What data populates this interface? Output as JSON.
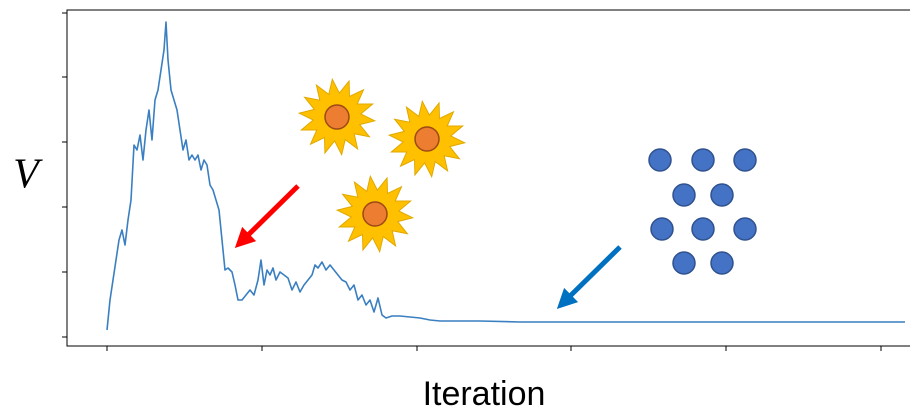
{
  "chart_data": {
    "type": "line",
    "xlabel": "Iteration",
    "ylabel": "V",
    "color": "#3a7fc1",
    "x": [
      0,
      3,
      6,
      9,
      12,
      15,
      18,
      21,
      24,
      27,
      30,
      33,
      36,
      39,
      42,
      45,
      48,
      51,
      54,
      57,
      59,
      61,
      64,
      67,
      70,
      73,
      76,
      79,
      82,
      85,
      88,
      91,
      94,
      97,
      100,
      103,
      106,
      109,
      112,
      115,
      118,
      121,
      125,
      128,
      131,
      135,
      139,
      143,
      147,
      151,
      154,
      157,
      160,
      163,
      166,
      169,
      173,
      177,
      181,
      185,
      189,
      193,
      197,
      201,
      205,
      208,
      211,
      215,
      219,
      223,
      227,
      231,
      235,
      239,
      243,
      247,
      251,
      255,
      259,
      263,
      267,
      271,
      275,
      279,
      285,
      293,
      303,
      313,
      323,
      333,
      343,
      373,
      413,
      453,
      493,
      593,
      693,
      774,
      798
    ],
    "values": [
      7,
      37,
      57,
      77,
      97,
      107,
      92,
      117,
      137,
      192,
      187,
      202,
      177,
      207,
      227,
      197,
      237,
      247,
      267,
      287,
      315,
      277,
      247,
      237,
      227,
      207,
      187,
      197,
      177,
      182,
      177,
      182,
      167,
      177,
      172,
      152,
      147,
      137,
      127,
      97,
      67,
      69,
      65,
      52,
      37,
      37,
      42,
      47,
      42,
      57,
      77,
      52,
      67,
      62,
      69,
      57,
      65,
      62,
      59,
      47,
      55,
      45,
      52,
      57,
      62,
      72,
      69,
      75,
      67,
      72,
      67,
      62,
      57,
      55,
      47,
      52,
      37,
      42,
      32,
      37,
      25,
      39,
      22,
      19,
      21,
      21,
      20,
      19,
      17,
      16,
      16,
      16,
      15,
      15,
      15,
      15,
      15,
      15,
      15
    ],
    "xlim": [
      -40,
      803
    ],
    "ylim": [
      -9,
      327
    ],
    "xticks": [
      0,
      155,
      310,
      464,
      619,
      774
    ],
    "yticks": [
      0,
      65,
      130,
      195,
      260,
      324
    ]
  }
}
